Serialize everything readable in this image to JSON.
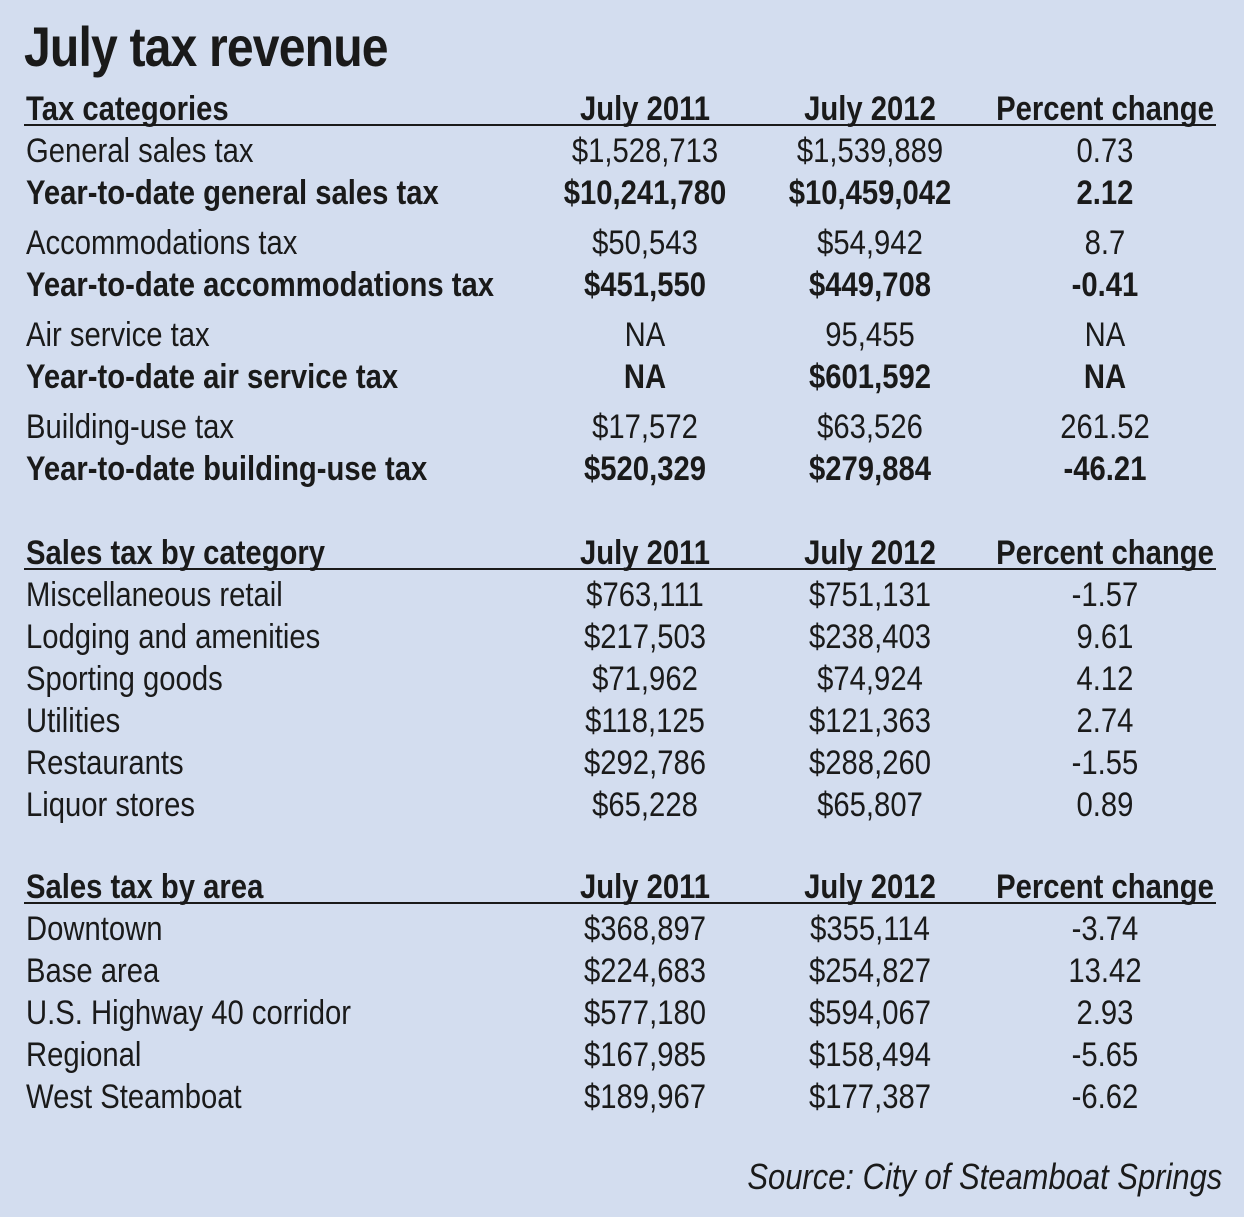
{
  "title": "July tax revenue",
  "source": "Source: City of Steamboat Springs",
  "sections": [
    {
      "header": [
        "Tax categories",
        "July 2011",
        "July 2012",
        "Percent change"
      ],
      "rows": [
        {
          "cells": [
            "General sales tax",
            "$1,528,713",
            "$1,539,889",
            "0.73"
          ],
          "bold": false
        },
        {
          "cells": [
            "Year-to-date general sales tax",
            "$10,241,780",
            "$10,459,042",
            "2.12"
          ],
          "bold": true
        },
        {
          "cells": [
            "Accommodations tax",
            "$50,543",
            "$54,942",
            "8.7"
          ],
          "bold": false
        },
        {
          "cells": [
            "Year-to-date accommodations tax",
            "$451,550",
            "$449,708",
            "-0.41"
          ],
          "bold": true
        },
        {
          "cells": [
            "Air service tax",
            "NA",
            "95,455",
            "NA"
          ],
          "bold": false
        },
        {
          "cells": [
            "Year-to-date air service tax",
            "NA",
            "$601,592",
            "NA"
          ],
          "bold": true
        },
        {
          "cells": [
            "Building-use tax",
            "$17,572",
            "$63,526",
            "261.52"
          ],
          "bold": false
        },
        {
          "cells": [
            "Year-to-date building-use tax",
            "$520,329",
            "$279,884",
            "-46.21"
          ],
          "bold": true
        }
      ]
    },
    {
      "header": [
        "Sales tax by category",
        "July 2011",
        "July 2012",
        "Percent change"
      ],
      "rows": [
        {
          "cells": [
            "Miscellaneous retail",
            "$763,111",
            "$751,131",
            "-1.57"
          ],
          "bold": false
        },
        {
          "cells": [
            "Lodging and amenities",
            "$217,503",
            "$238,403",
            "9.61"
          ],
          "bold": false
        },
        {
          "cells": [
            "Sporting goods",
            "$71,962",
            "$74,924",
            "4.12"
          ],
          "bold": false
        },
        {
          "cells": [
            "Utilities",
            "$118,125",
            "$121,363",
            "2.74"
          ],
          "bold": false
        },
        {
          "cells": [
            "Restaurants",
            "$292,786",
            "$288,260",
            "-1.55"
          ],
          "bold": false
        },
        {
          "cells": [
            "Liquor stores",
            "$65,228",
            "$65,807",
            "0.89"
          ],
          "bold": false
        }
      ]
    },
    {
      "header": [
        "Sales tax by area",
        "July 2011",
        "July 2012",
        "Percent change"
      ],
      "rows": [
        {
          "cells": [
            "Downtown",
            "$368,897",
            "$355,114",
            "-3.74"
          ],
          "bold": false
        },
        {
          "cells": [
            "Base area",
            "$224,683",
            "$254,827",
            "13.42"
          ],
          "bold": false
        },
        {
          "cells": [
            "U.S. Highway 40 corridor",
            "$577,180",
            "$594,067",
            "2.93"
          ],
          "bold": false
        },
        {
          "cells": [
            "Regional",
            "$167,985",
            "$158,494",
            "-5.65"
          ],
          "bold": false
        },
        {
          "cells": [
            "West Steamboat",
            "$189,967",
            "$177,387",
            "-6.62"
          ],
          "bold": false
        }
      ]
    }
  ],
  "colors": {
    "background": "#d3ddef",
    "text": "#1a1a1a"
  }
}
